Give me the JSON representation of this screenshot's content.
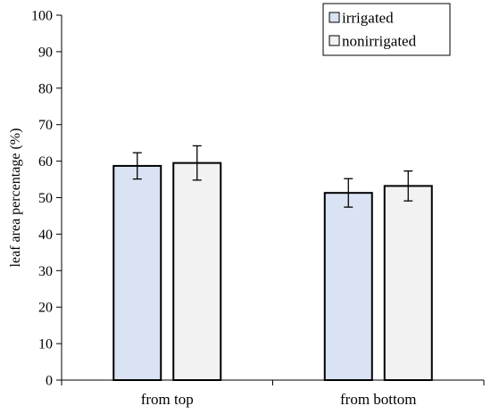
{
  "chart_data": {
    "type": "bar",
    "title": "",
    "xlabel": "",
    "ylabel": "leaf area percentage (%)",
    "ylim": [
      0,
      100
    ],
    "yticks": [
      0,
      10,
      20,
      30,
      40,
      50,
      60,
      70,
      80,
      90,
      100
    ],
    "grid": false,
    "legend_position": "top-right",
    "categories": [
      "from top",
      "from bottom"
    ],
    "series": [
      {
        "name": "irrigated",
        "color": "#dae3f3",
        "values": [
          58.7,
          51.3
        ],
        "errors": [
          3.6,
          3.9
        ]
      },
      {
        "name": "nonirrigated",
        "color": "#f2f2f2",
        "values": [
          59.5,
          53.2
        ],
        "errors": [
          4.7,
          4.1
        ]
      }
    ]
  }
}
